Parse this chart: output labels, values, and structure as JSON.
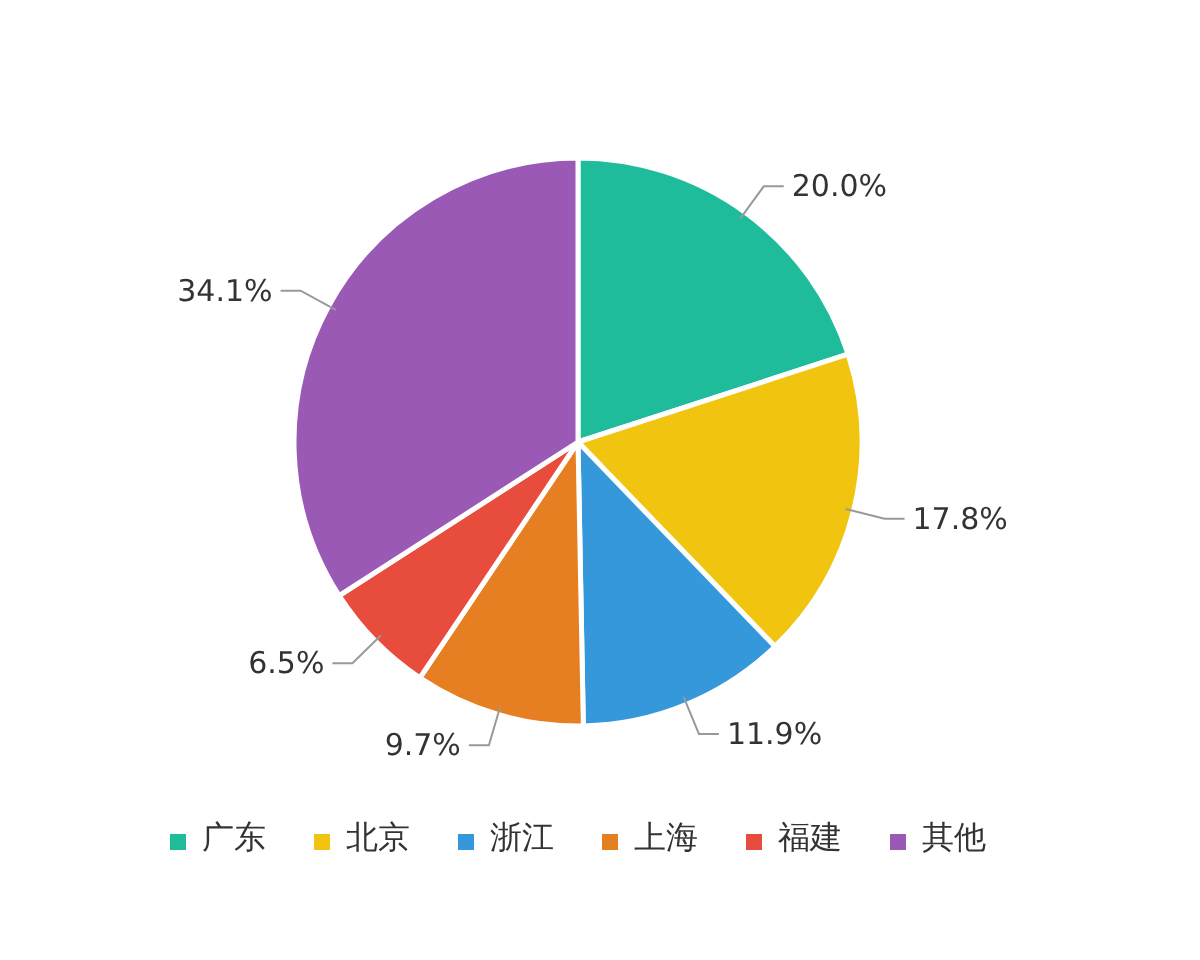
{
  "chart_data": {
    "type": "pie",
    "categories": [
      "广东",
      "北京",
      "浙江",
      "上海",
      "福建",
      "其他"
    ],
    "values": [
      20.0,
      17.8,
      11.9,
      9.7,
      6.5,
      34.1
    ],
    "value_labels": [
      "20.0%",
      "17.8%",
      "11.9%",
      "9.7%",
      "6.5%",
      "34.1%"
    ],
    "colors": [
      "#1fbc9c",
      "#f1c40f",
      "#3498db",
      "#e67e22",
      "#e74c3c",
      "#9b59b6"
    ],
    "legend": "bottom"
  }
}
